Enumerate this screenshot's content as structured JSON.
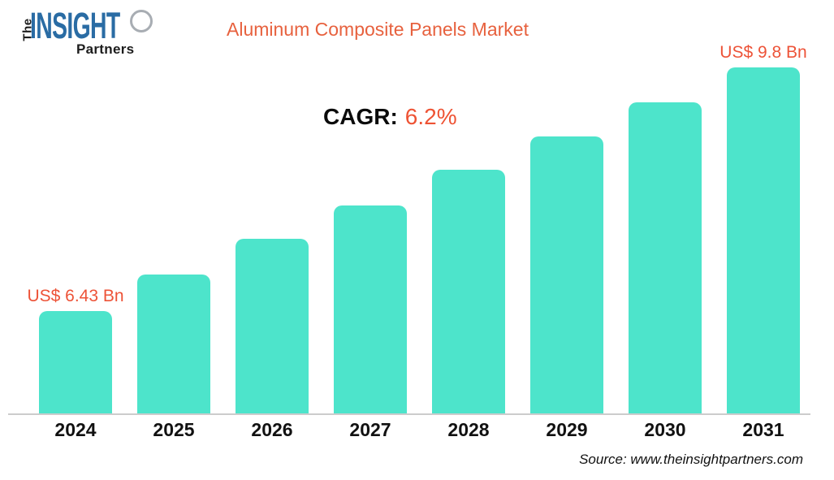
{
  "header": {
    "logo": {
      "word_the": "The",
      "word_insight": "INSIGHT",
      "word_partners": "Partners"
    },
    "title": "Aluminum Composite Panels Market"
  },
  "cagr": {
    "label": "CAGR:",
    "value": "6.2%"
  },
  "source": "Source: www.theinsightpartners.com",
  "colors": {
    "bar_fill": "#4DE4CB",
    "accent_orange": "#E7613E",
    "value_label_orange": "#ED5338",
    "logo_blue": "#2A6CA4",
    "axis_line": "#CCCCCC",
    "text_black": "#111111"
  },
  "chart_data": {
    "type": "bar",
    "title": "Aluminum Composite Panels Market",
    "unit": "US$ Bn",
    "categories": [
      "2024",
      "2025",
      "2026",
      "2027",
      "2028",
      "2029",
      "2030",
      "2031"
    ],
    "values": [
      6.43,
      6.91,
      7.39,
      7.87,
      8.36,
      8.84,
      9.32,
      9.8
    ],
    "value_labels": [
      {
        "category": "2024",
        "text": "US$ 6.43 Bn"
      },
      {
        "category": "2031",
        "text": "US$ 9.8 Bn"
      }
    ],
    "cagr": "6.2%",
    "xlabel": "",
    "ylabel": "",
    "ylim": [
      5,
      9.8
    ],
    "grid": false,
    "legend": false,
    "bar_height_fractions": [
      0.297,
      0.402,
      0.505,
      0.603,
      0.705,
      0.801,
      0.9,
      1.0
    ]
  }
}
